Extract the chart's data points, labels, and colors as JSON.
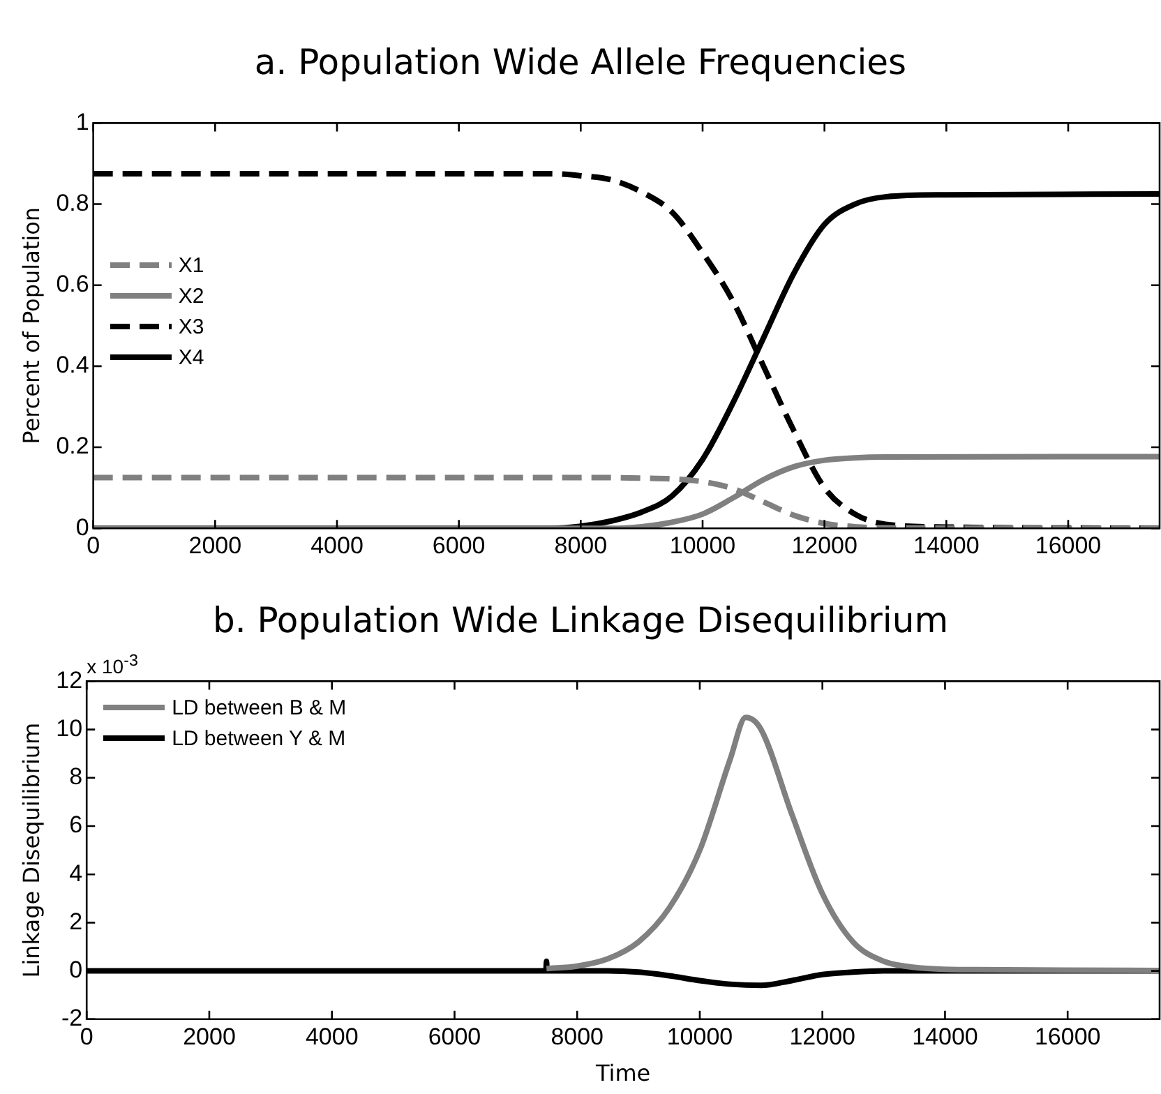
{
  "chart_data": [
    {
      "type": "line",
      "title": "a. Population Wide Allele Frequencies",
      "ylabel": "Percent of Population",
      "xlim": [
        0,
        17500
      ],
      "xticks": [
        0,
        2000,
        4000,
        6000,
        8000,
        10000,
        12000,
        14000,
        16000
      ],
      "ylim": [
        0,
        1
      ],
      "yticks": [
        0,
        0.2,
        0.4,
        0.6,
        0.8,
        1
      ],
      "grid": false,
      "legend": "left",
      "marker": "none",
      "series": [
        {
          "name": "X1",
          "color": "#808080",
          "line_style": "dashed",
          "x": [
            0,
            8500,
            9000,
            9500,
            10000,
            10500,
            11000,
            11500,
            12000,
            12500,
            13000,
            17500
          ],
          "values": [
            0.125,
            0.125,
            0.124,
            0.122,
            0.115,
            0.098,
            0.065,
            0.032,
            0.012,
            0.004,
            0.001,
            0
          ]
        },
        {
          "name": "X2",
          "color": "#808080",
          "line_style": "solid",
          "x": [
            0,
            8500,
            9000,
            9500,
            10000,
            10500,
            11000,
            11500,
            12000,
            12500,
            13000,
            17500
          ],
          "values": [
            0,
            0,
            0.004,
            0.015,
            0.035,
            0.075,
            0.12,
            0.152,
            0.168,
            0.174,
            0.176,
            0.177
          ]
        },
        {
          "name": "X3",
          "color": "#000000",
          "line_style": "dashed",
          "x": [
            0,
            7500,
            8000,
            8500,
            9000,
            9500,
            10000,
            10500,
            11000,
            11500,
            12000,
            12500,
            13000,
            14000,
            17500
          ],
          "values": [
            0.875,
            0.875,
            0.87,
            0.86,
            0.83,
            0.78,
            0.68,
            0.56,
            0.4,
            0.24,
            0.1,
            0.035,
            0.01,
            0.003,
            0
          ]
        },
        {
          "name": "X4",
          "color": "#000000",
          "line_style": "solid",
          "x": [
            0,
            7500,
            8000,
            8500,
            9000,
            9500,
            10000,
            10500,
            11000,
            11500,
            12000,
            12500,
            13000,
            14000,
            17500
          ],
          "values": [
            0,
            0,
            0.005,
            0.018,
            0.04,
            0.08,
            0.17,
            0.31,
            0.47,
            0.63,
            0.75,
            0.8,
            0.818,
            0.823,
            0.825
          ]
        }
      ]
    },
    {
      "type": "line",
      "title": "b. Population Wide Linkage Disequilibrium",
      "xlabel": "Time",
      "ylabel": "Linkage Disequilibrium",
      "annotations": [
        "x 10$^{-3}$"
      ],
      "xlim": [
        0,
        17500
      ],
      "xticks": [
        0,
        2000,
        4000,
        6000,
        8000,
        10000,
        12000,
        14000,
        16000
      ],
      "ylim": [
        -2,
        12
      ],
      "yticks": [
        -2,
        0,
        2,
        4,
        6,
        8,
        10,
        12
      ],
      "grid": false,
      "legend": "top left",
      "marker": "none",
      "series": [
        {
          "name": "LD between B & M",
          "color": "#808080",
          "line_style": "solid",
          "x": [
            7500,
            8000,
            8500,
            9000,
            9500,
            10000,
            10500,
            10750,
            11000,
            11500,
            12000,
            12500,
            13000,
            13500,
            14500,
            17500
          ],
          "values": [
            0.1,
            0.2,
            0.5,
            1.2,
            2.6,
            5,
            8.8,
            10.5,
            10,
            6.5,
            3.2,
            1.2,
            0.4,
            0.15,
            0.05,
            0.02
          ]
        },
        {
          "name": "LD between Y & M",
          "color": "#000000",
          "line_style": "solid",
          "x": [
            0,
            7490,
            7500,
            7510,
            8500,
            9000,
            9500,
            10000,
            10500,
            11000,
            11500,
            12000,
            12500,
            13000,
            17500
          ],
          "values": [
            0,
            0,
            0.4,
            0,
            0,
            -0.05,
            -0.2,
            -0.4,
            -0.55,
            -0.6,
            -0.4,
            -0.15,
            -0.05,
            0,
            0
          ]
        }
      ]
    }
  ]
}
